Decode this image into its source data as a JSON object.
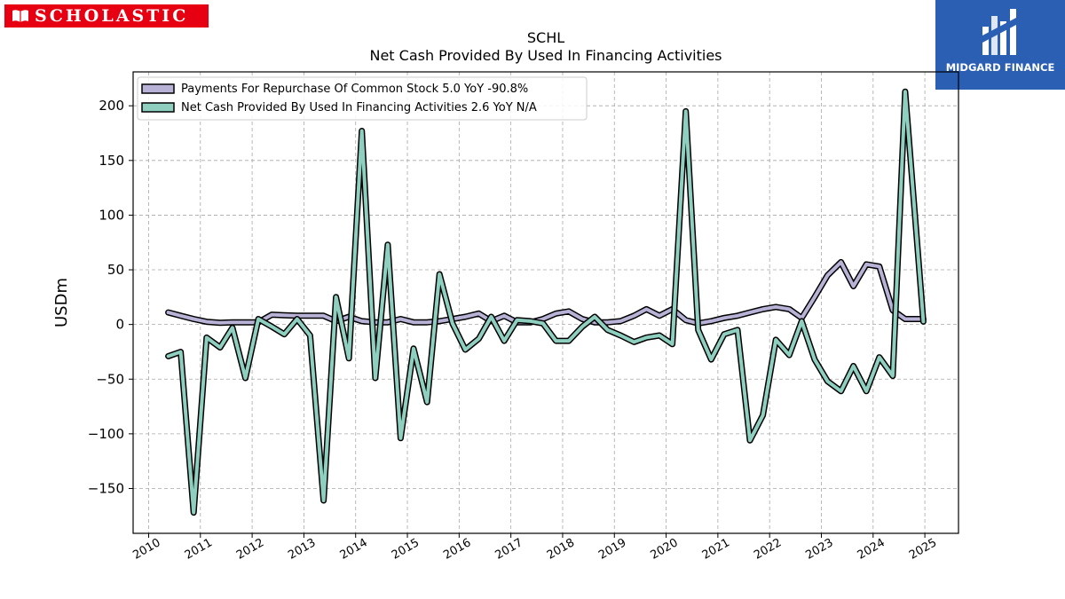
{
  "logos": {
    "left_text": "SCHOLASTIC",
    "right_text": "MIDGARD FINANCE"
  },
  "chart_data": {
    "type": "line",
    "title": "SCHL",
    "subtitle": "Net Cash Provided By Used In Financing Activities",
    "xlabel": "",
    "ylabel": "USDm",
    "xlim": [
      2009.7,
      2025.65
    ],
    "ylim": [
      -191,
      231
    ],
    "x_ticks": [
      "2010",
      "2011",
      "2012",
      "2013",
      "2014",
      "2015",
      "2016",
      "2017",
      "2018",
      "2019",
      "2020",
      "2021",
      "2022",
      "2023",
      "2024",
      "2025"
    ],
    "y_ticks": [
      -150,
      -100,
      -50,
      0,
      50,
      100,
      150,
      200
    ],
    "y_tick_labels": [
      "−150",
      "−100",
      "−50",
      "0",
      "50",
      "100",
      "150",
      "200"
    ],
    "grid": true,
    "legend_position": "top-left",
    "colors": {
      "repurchase": "#b8b2d6",
      "financing": "#8ecfbf",
      "outline": "#000000"
    },
    "series": [
      {
        "name": "Payments For Repurchase Of Common Stock",
        "legend": "Payments For Repurchase Of Common Stock  5.0 YoY -90.8%",
        "color": "#b8b2d6",
        "points": [
          [
            2010.38,
            11
          ],
          [
            2010.62,
            8
          ],
          [
            2010.87,
            5
          ],
          [
            2011.12,
            2.5
          ],
          [
            2011.38,
            1.5
          ],
          [
            2011.62,
            2
          ],
          [
            2011.87,
            2
          ],
          [
            2012.12,
            2
          ],
          [
            2012.38,
            9
          ],
          [
            2012.62,
            8.5
          ],
          [
            2012.87,
            8
          ],
          [
            2013.12,
            8
          ],
          [
            2013.38,
            8
          ],
          [
            2013.62,
            3
          ],
          [
            2013.87,
            7
          ],
          [
            2014.12,
            3
          ],
          [
            2014.38,
            2
          ],
          [
            2014.62,
            2
          ],
          [
            2014.87,
            5
          ],
          [
            2015.12,
            2
          ],
          [
            2015.38,
            2
          ],
          [
            2015.62,
            3
          ],
          [
            2015.87,
            5
          ],
          [
            2016.12,
            7
          ],
          [
            2016.38,
            10
          ],
          [
            2016.62,
            3
          ],
          [
            2016.87,
            8
          ],
          [
            2017.12,
            2
          ],
          [
            2017.38,
            2
          ],
          [
            2017.62,
            5
          ],
          [
            2017.87,
            10
          ],
          [
            2018.12,
            12
          ],
          [
            2018.38,
            5
          ],
          [
            2018.62,
            2
          ],
          [
            2018.87,
            2
          ],
          [
            2019.12,
            3
          ],
          [
            2019.38,
            8
          ],
          [
            2019.62,
            14
          ],
          [
            2019.87,
            8
          ],
          [
            2020.12,
            14
          ],
          [
            2020.38,
            4
          ],
          [
            2020.62,
            1
          ],
          [
            2020.87,
            3
          ],
          [
            2021.12,
            6
          ],
          [
            2021.38,
            8
          ],
          [
            2021.62,
            11
          ],
          [
            2021.87,
            14
          ],
          [
            2022.12,
            16
          ],
          [
            2022.38,
            14
          ],
          [
            2022.62,
            6
          ],
          [
            2022.87,
            25
          ],
          [
            2023.12,
            45
          ],
          [
            2023.38,
            57
          ],
          [
            2023.62,
            35
          ],
          [
            2023.87,
            55
          ],
          [
            2024.12,
            53
          ],
          [
            2024.38,
            13
          ],
          [
            2024.62,
            5
          ],
          [
            2024.97,
            5
          ]
        ]
      },
      {
        "name": "Net Cash Provided By Used In Financing Activities",
        "legend": "Net Cash Provided By Used In Financing Activities  2.6 YoY N/A",
        "color": "#8ecfbf",
        "points": [
          [
            2010.38,
            -29
          ],
          [
            2010.62,
            -25
          ],
          [
            2010.87,
            -172
          ],
          [
            2011.12,
            -12
          ],
          [
            2011.38,
            -21
          ],
          [
            2011.62,
            -3
          ],
          [
            2011.87,
            -49
          ],
          [
            2012.12,
            5
          ],
          [
            2012.38,
            -2
          ],
          [
            2012.62,
            -9
          ],
          [
            2012.87,
            5
          ],
          [
            2013.12,
            -10
          ],
          [
            2013.38,
            -161
          ],
          [
            2013.62,
            25
          ],
          [
            2013.87,
            -31
          ],
          [
            2014.12,
            177
          ],
          [
            2014.38,
            -49
          ],
          [
            2014.62,
            73
          ],
          [
            2014.87,
            -104
          ],
          [
            2015.12,
            -22
          ],
          [
            2015.38,
            -71
          ],
          [
            2015.62,
            46
          ],
          [
            2015.87,
            1
          ],
          [
            2016.12,
            -23
          ],
          [
            2016.38,
            -13
          ],
          [
            2016.62,
            7
          ],
          [
            2016.87,
            -15
          ],
          [
            2017.12,
            4
          ],
          [
            2017.38,
            3
          ],
          [
            2017.62,
            1
          ],
          [
            2017.87,
            -15
          ],
          [
            2018.12,
            -15
          ],
          [
            2018.38,
            -2
          ],
          [
            2018.62,
            7
          ],
          [
            2018.87,
            -5
          ],
          [
            2019.12,
            -10
          ],
          [
            2019.38,
            -16
          ],
          [
            2019.62,
            -12
          ],
          [
            2019.87,
            -10
          ],
          [
            2020.12,
            -18
          ],
          [
            2020.38,
            195
          ],
          [
            2020.62,
            -5
          ],
          [
            2020.87,
            -32
          ],
          [
            2021.12,
            -9
          ],
          [
            2021.38,
            -5
          ],
          [
            2021.62,
            -106
          ],
          [
            2021.87,
            -83
          ],
          [
            2022.12,
            -14
          ],
          [
            2022.38,
            -28
          ],
          [
            2022.62,
            3
          ],
          [
            2022.87,
            -32
          ],
          [
            2023.12,
            -52
          ],
          [
            2023.38,
            -61
          ],
          [
            2023.62,
            -38
          ],
          [
            2023.87,
            -61
          ],
          [
            2024.12,
            -30
          ],
          [
            2024.38,
            -47
          ],
          [
            2024.62,
            213
          ],
          [
            2024.97,
            2.6
          ]
        ]
      }
    ]
  }
}
